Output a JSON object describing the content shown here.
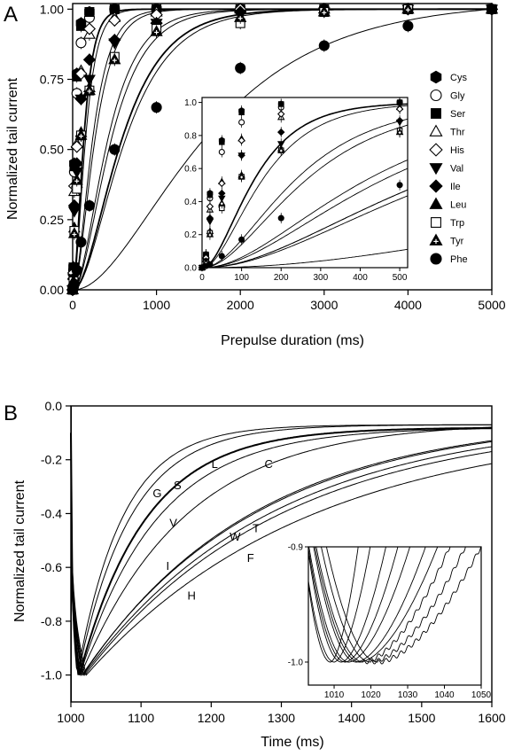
{
  "chart_data": [
    {
      "panel": "A",
      "type": "scatter",
      "xlabel": "Prepulse duration (ms)",
      "ylabel": "Normalized tail current",
      "xlim": [
        0,
        5000
      ],
      "ylim": [
        0,
        1.02
      ],
      "xticks": [
        "0",
        "1000",
        "2000",
        "3000",
        "4000",
        "5000"
      ],
      "yticks": [
        "0.00",
        "0.25",
        "0.50",
        "0.75",
        "1.00"
      ],
      "x": [
        0,
        10,
        20,
        50,
        100,
        200,
        500,
        1000,
        2000,
        3000,
        4000,
        5000
      ],
      "series": [
        {
          "name": "Cys",
          "marker": "hexagon-filled",
          "tau": 95,
          "values": [
            0.0,
            0.08,
            0.45,
            0.77,
            0.95,
            0.99,
            1.0,
            1.0,
            1.0,
            1.0,
            1.0,
            1.0
          ]
        },
        {
          "name": "Gly",
          "marker": "circle-open",
          "tau": 110,
          "values": [
            0.0,
            0.07,
            0.42,
            0.7,
            0.88,
            0.97,
            1.0,
            1.0,
            1.0,
            1.0,
            1.0,
            1.0
          ]
        },
        {
          "name": "Ser",
          "marker": "square-filled",
          "tau": 95,
          "values": [
            0.0,
            0.08,
            0.44,
            0.76,
            0.94,
            0.99,
            1.0,
            1.0,
            1.0,
            1.0,
            1.0,
            1.0
          ]
        },
        {
          "name": "Thr",
          "marker": "triangle-open",
          "tau": 190,
          "values": [
            0.0,
            0.05,
            0.35,
            0.52,
            0.78,
            0.91,
            0.97,
            0.99,
            1.0,
            1.0,
            1.0,
            1.0
          ]
        },
        {
          "name": "His",
          "marker": "diamond-open",
          "tau": 170,
          "values": [
            0.0,
            0.06,
            0.37,
            0.51,
            0.77,
            0.93,
            0.96,
            0.98,
            1.0,
            1.0,
            1.0,
            1.0
          ]
        },
        {
          "name": "Val",
          "marker": "triangle-down-filled",
          "tau": 330,
          "values": [
            0.0,
            0.04,
            0.28,
            0.42,
            0.68,
            0.75,
            0.88,
            0.95,
            0.98,
            0.99,
            1.0,
            1.0
          ]
        },
        {
          "name": "Ile",
          "marker": "diamond-filled",
          "tau": 300,
          "values": [
            0.0,
            0.04,
            0.3,
            0.45,
            0.68,
            0.82,
            0.89,
            0.95,
            0.99,
            1.0,
            1.0,
            1.0
          ]
        },
        {
          "name": "Leu",
          "marker": "triangle-filled",
          "tau": 420,
          "values": [
            0.0,
            0.03,
            0.22,
            0.38,
            0.56,
            0.72,
            0.82,
            0.92,
            0.97,
            0.99,
            1.0,
            1.0
          ]
        },
        {
          "name": "Trp",
          "marker": "square-open",
          "tau": 420,
          "values": [
            0.0,
            0.03,
            0.21,
            0.36,
            0.55,
            0.71,
            0.83,
            0.93,
            0.95,
            0.99,
            1.0,
            1.0
          ]
        },
        {
          "name": "Tyr",
          "marker": "triangle-plus",
          "tau": 450,
          "values": [
            0.0,
            0.03,
            0.2,
            0.39,
            0.55,
            0.71,
            0.82,
            0.92,
            0.97,
            0.99,
            1.0,
            1.0
          ]
        },
        {
          "name": "Phe",
          "marker": "circle-filled",
          "tau": 1150,
          "values": [
            0.0,
            0.01,
            0.02,
            0.07,
            0.17,
            0.3,
            0.5,
            0.65,
            0.79,
            0.87,
            0.94,
            1.0
          ]
        }
      ],
      "legend": "right, inside",
      "inset": {
        "xlim": [
          0,
          520
        ],
        "ylim": [
          0,
          1.03
        ],
        "xticks": [
          "0",
          "100",
          "200",
          "300",
          "400",
          "500"
        ],
        "yticks": [
          "0.0",
          "0.2",
          "0.4",
          "0.6",
          "0.8",
          "1.0"
        ],
        "x": [
          0,
          10,
          20,
          50,
          100,
          200,
          500
        ]
      }
    },
    {
      "panel": "B",
      "type": "line",
      "xlabel": "Time (ms)",
      "ylabel": "Normalized tail current",
      "xlim": [
        1000,
        1600
      ],
      "ylim": [
        -1.1,
        0
      ],
      "xticks": [
        "1000",
        "1100",
        "1200",
        "1300",
        "1400",
        "1500",
        "1600"
      ],
      "yticks": [
        "0.0",
        "-0.2",
        "-0.4",
        "-0.6",
        "-0.8",
        "-1.0"
      ],
      "series": [
        {
          "name": "G",
          "tmin": 1009,
          "tau": 65,
          "plateau": -0.07
        },
        {
          "name": "S",
          "tmin": 1010,
          "tau": 75,
          "plateau": -0.07
        },
        {
          "name": "L",
          "tmin": 1012,
          "tau": 95,
          "plateau": -0.08
        },
        {
          "name": "C",
          "tmin": 1013,
          "tau": 110,
          "plateau": -0.08
        },
        {
          "name": "V",
          "tmin": 1014,
          "tau": 150,
          "plateau": -0.06
        },
        {
          "name": "W",
          "tmin": 1016,
          "tau": 250,
          "plateau": -0.04
        },
        {
          "name": "T",
          "tmin": 1017,
          "tau": 245,
          "plateau": -0.04
        },
        {
          "name": "I",
          "tmin": 1018,
          "tau": 270,
          "plateau": -0.04
        },
        {
          "name": "F",
          "tmin": 1020,
          "tau": 280,
          "plateau": -0.05
        },
        {
          "name": "H",
          "tmin": 1022,
          "tau": 320,
          "plateau": -0.06
        }
      ],
      "trace_labels": [
        {
          "text": "G",
          "x": 1123,
          "y": -0.34
        },
        {
          "text": "S",
          "x": 1152,
          "y": -0.31
        },
        {
          "text": "L",
          "x": 1205,
          "y": -0.23
        },
        {
          "text": "C",
          "x": 1282,
          "y": -0.23
        },
        {
          "text": "V",
          "x": 1146,
          "y": -0.45
        },
        {
          "text": "W",
          "x": 1234,
          "y": -0.5
        },
        {
          "text": "T",
          "x": 1264,
          "y": -0.47
        },
        {
          "text": "I",
          "x": 1138,
          "y": -0.61
        },
        {
          "text": "F",
          "x": 1256,
          "y": -0.58
        },
        {
          "text": "H",
          "x": 1172,
          "y": -0.72
        }
      ],
      "inset": {
        "xlim": [
          1003,
          1050
        ],
        "ylim": [
          -1.02,
          -0.9
        ],
        "xticks": [
          "1010",
          "1020",
          "1030",
          "1040",
          "1050"
        ],
        "yticks": [
          "-0.9",
          "-1.0"
        ]
      }
    }
  ]
}
